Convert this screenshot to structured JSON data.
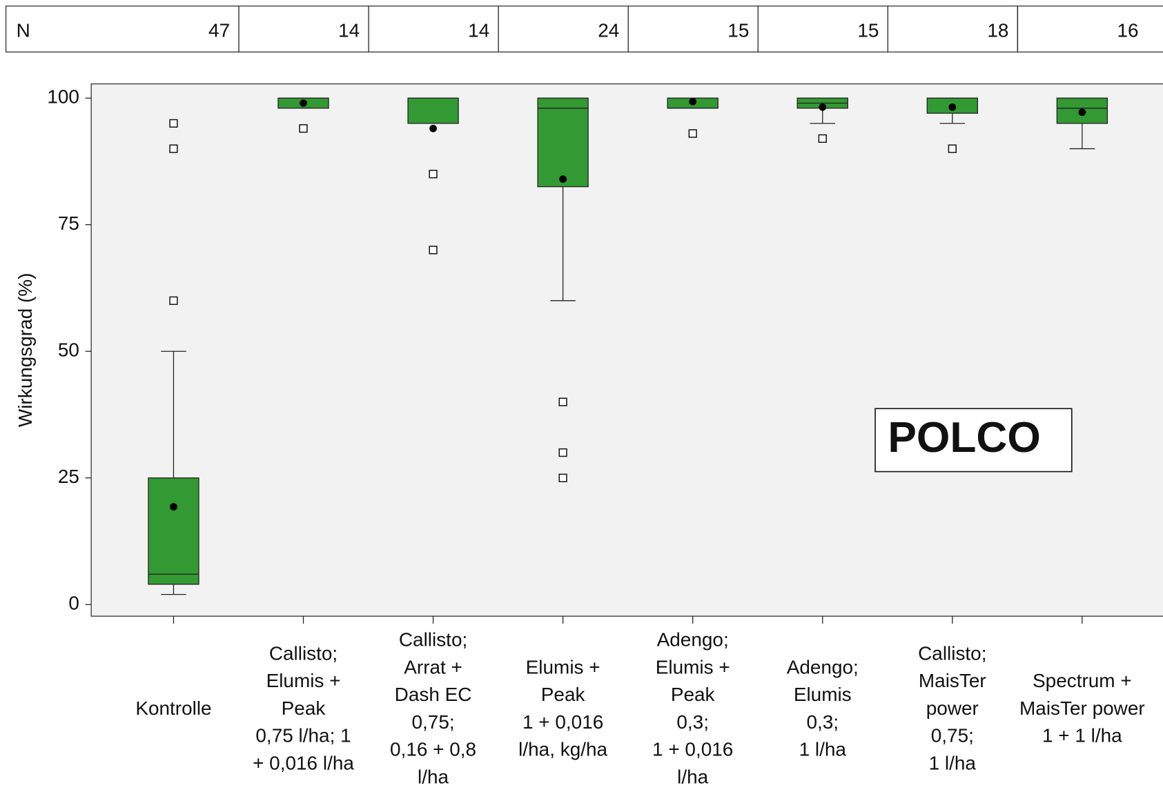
{
  "chart_data": {
    "type": "box",
    "n_row": {
      "label": "N",
      "values": [
        47,
        14,
        14,
        24,
        15,
        15,
        18,
        16
      ]
    },
    "ylabel": "Wirkungsgrad (%)",
    "annotation": "POLCO",
    "ylim": [
      -2.3,
      102.8
    ],
    "yticks": [
      0,
      25,
      50,
      75,
      100
    ],
    "color": "#339933",
    "categories": [
      [
        "Kontrolle"
      ],
      [
        "Callisto;",
        "Elumis +",
        "Peak",
        "0,75 l/ha; 1",
        "+ 0,016 l/ha"
      ],
      [
        "Callisto;",
        "Arrat +",
        "Dash EC",
        "0,75;",
        "0,16 + 0,8",
        "l/ha"
      ],
      [
        "Elumis +",
        "Peak",
        "1 + 0,016",
        "l/ha, kg/ha"
      ],
      [
        "Adengo;",
        "Elumis +",
        "Peak",
        "0,3;",
        "1 + 0,016",
        "l/ha"
      ],
      [
        "Adengo;",
        "Elumis",
        "0,3;",
        "1 l/ha"
      ],
      [
        "Callisto;",
        "MaisTer",
        "power",
        "0,75;",
        "1 l/ha"
      ],
      [
        "Spectrum +",
        "MaisTer power",
        "1 + 1 l/ha"
      ]
    ],
    "boxes": [
      {
        "whisker_low": 2,
        "q1": 4,
        "median": 6,
        "q3": 25,
        "whisker_high": 50,
        "mean": 19.3,
        "outliers": [
          95,
          90,
          60
        ]
      },
      {
        "whisker_low": 98,
        "q1": 98,
        "median": 100,
        "q3": 100,
        "whisker_high": 100,
        "mean": 99,
        "outliers": [
          94
        ]
      },
      {
        "whisker_low": 95,
        "q1": 95,
        "median": 100,
        "q3": 100,
        "whisker_high": 100,
        "mean": 94,
        "outliers": [
          85,
          70
        ]
      },
      {
        "whisker_low": 60,
        "q1": 82.5,
        "median": 98,
        "q3": 100,
        "whisker_high": 100,
        "mean": 84,
        "outliers": [
          40,
          30,
          25
        ]
      },
      {
        "whisker_low": 98,
        "q1": 98,
        "median": 98,
        "q3": 100,
        "whisker_high": 100,
        "mean": 99.3,
        "outliers": [
          93
        ]
      },
      {
        "whisker_low": 95,
        "q1": 98,
        "median": 99,
        "q3": 100,
        "whisker_high": 100,
        "mean": 98.2,
        "outliers": [
          92
        ]
      },
      {
        "whisker_low": 95,
        "q1": 97,
        "median": 100,
        "q3": 100,
        "whisker_high": 100,
        "mean": 98.2,
        "outliers": [
          90
        ]
      },
      {
        "whisker_low": 90,
        "q1": 95,
        "median": 98,
        "q3": 100,
        "whisker_high": 100,
        "mean": 97.2,
        "outliers": []
      }
    ]
  }
}
